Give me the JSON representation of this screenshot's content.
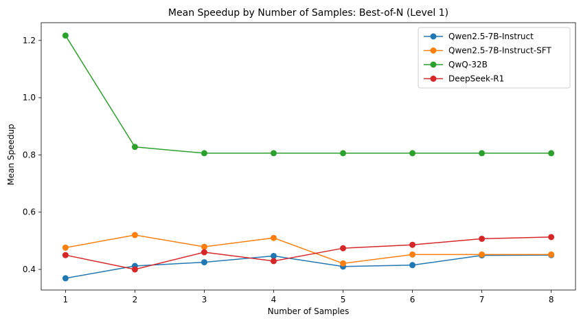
{
  "chart_data": {
    "type": "line",
    "title": "Mean Speedup by Number of Samples: Best-of-N (Level 1)",
    "xlabel": "Number of Samples",
    "ylabel": "Mean Speedup",
    "x": [
      1,
      2,
      3,
      4,
      5,
      6,
      7,
      8
    ],
    "xlim": [
      0.65,
      8.35
    ],
    "ylim": [
      0.328,
      1.262
    ],
    "yticks": [
      0.4,
      0.6,
      0.8,
      1.0,
      1.2
    ],
    "ytick_labels": [
      "0.4",
      "0.6",
      "0.8",
      "1.0",
      "1.2"
    ],
    "xtick_labels": [
      "1",
      "2",
      "3",
      "4",
      "5",
      "6",
      "7",
      "8"
    ],
    "grid": false,
    "legend_position": "top-right",
    "series": [
      {
        "name": "Qwen2.5-7B-Instruct",
        "color": "#1f77b4",
        "values": [
          0.369,
          0.412,
          0.425,
          0.447,
          0.41,
          0.415,
          0.449,
          0.45
        ]
      },
      {
        "name": "Qwen2.5-7B-Instruct-SFT",
        "color": "#ff7f0e",
        "values": [
          0.476,
          0.52,
          0.479,
          0.51,
          0.421,
          0.452,
          0.452,
          0.452
        ]
      },
      {
        "name": "QwQ-32B",
        "color": "#2ca02c",
        "values": [
          1.217,
          0.828,
          0.806,
          0.806,
          0.806,
          0.806,
          0.806,
          0.806
        ]
      },
      {
        "name": "DeepSeek-R1",
        "color": "#d62728",
        "values": [
          0.45,
          0.4,
          0.46,
          0.429,
          0.474,
          0.486,
          0.507,
          0.513
        ]
      }
    ]
  }
}
